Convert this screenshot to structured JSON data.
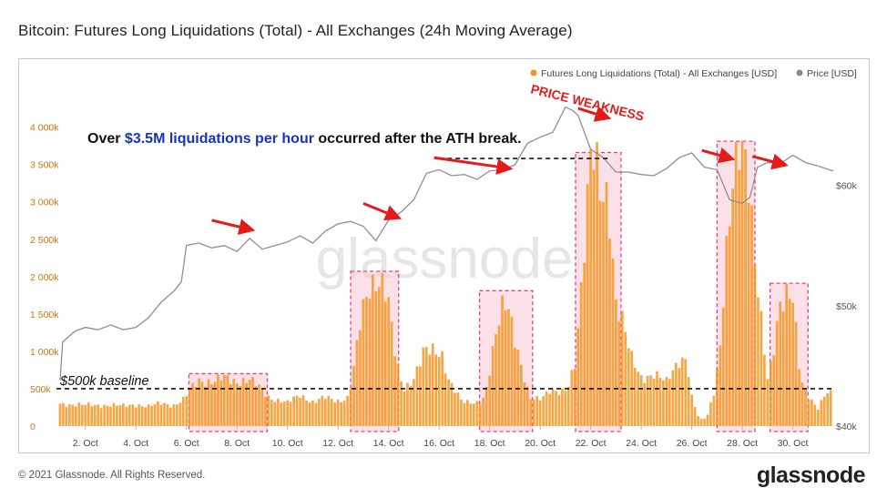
{
  "title": "Bitcoin: Futures Long Liquidations (Total) - All Exchanges (24h Moving Average)",
  "footer": "© 2021 Glassnode. All Rights Reserved.",
  "brand": "glassnode",
  "watermark": "glassnode",
  "colors": {
    "bar": "#f7931a",
    "price": "#999999",
    "highlight_fill": "#f7c6d6",
    "highlight_stroke": "#e8407a",
    "arrow": "#e51b1b",
    "annotation_blue": "#1633c9"
  },
  "chart_data": {
    "type": "bar",
    "x_tick_labels": [
      "2. Oct",
      "4. Oct",
      "6. Oct",
      "8. Oct",
      "10. Oct",
      "12. Oct",
      "14. Oct",
      "16. Oct",
      "18. Oct",
      "20. Oct",
      "22. Oct",
      "24. Oct",
      "26. Oct",
      "28. Oct",
      "30. Oct"
    ],
    "x_start_day": 1,
    "x_end_day": 31.6,
    "y_left_ticks": [
      "0",
      "500k",
      "1 000k",
      "1 500k",
      "2 000k",
      "2 500k",
      "3 000k",
      "3 500k",
      "4 000k"
    ],
    "y_left_range": [
      0,
      4300000
    ],
    "y_right_ticks": [
      "$40k",
      "$50k",
      "$60k"
    ],
    "y_right_range": [
      40000,
      66700
    ],
    "series": [
      {
        "name": "Futures Long Liquidations (Total) - All Exchanges [USD]",
        "type": "bar",
        "points": [
          [
            1,
            300000
          ],
          [
            1.5,
            290000
          ],
          [
            2,
            280000
          ],
          [
            2.5,
            280000
          ],
          [
            3,
            280000
          ],
          [
            3.5,
            270000
          ],
          [
            4,
            290000
          ],
          [
            4.5,
            260000
          ],
          [
            5,
            310000
          ],
          [
            5.5,
            280000
          ],
          [
            5.9,
            350000
          ],
          [
            6.1,
            470000
          ],
          [
            6.5,
            620000
          ],
          [
            7,
            590000
          ],
          [
            7.5,
            640000
          ],
          [
            8,
            600000
          ],
          [
            8.5,
            620000
          ],
          [
            9,
            480000
          ],
          [
            9.2,
            400000
          ],
          [
            9.5,
            360000
          ],
          [
            10,
            310000
          ],
          [
            10.5,
            420000
          ],
          [
            11,
            320000
          ],
          [
            11.5,
            380000
          ],
          [
            12,
            340000
          ],
          [
            12.4,
            380000
          ],
          [
            12.6,
            700000
          ],
          [
            12.9,
            1400000
          ],
          [
            13.2,
            1850000
          ],
          [
            13.5,
            2010000
          ],
          [
            13.8,
            1900000
          ],
          [
            14,
            1600000
          ],
          [
            14.3,
            850000
          ],
          [
            14.6,
            500000
          ],
          [
            15,
            650000
          ],
          [
            15.4,
            980000
          ],
          [
            15.8,
            1010000
          ],
          [
            16.1,
            1000000
          ],
          [
            16.4,
            600000
          ],
          [
            16.9,
            320000
          ],
          [
            17.3,
            320000
          ],
          [
            17.7,
            330000
          ],
          [
            17.9,
            520000
          ],
          [
            18.2,
            1100000
          ],
          [
            18.5,
            1600000
          ],
          [
            18.7,
            1750000
          ],
          [
            19,
            1200000
          ],
          [
            19.3,
            700000
          ],
          [
            19.6,
            350000
          ],
          [
            20,
            380000
          ],
          [
            20.4,
            500000
          ],
          [
            20.8,
            420000
          ],
          [
            21.1,
            500000
          ],
          [
            21.4,
            900000
          ],
          [
            21.6,
            1800000
          ],
          [
            21.8,
            2700000
          ],
          [
            22,
            3600000
          ],
          [
            22.2,
            3450000
          ],
          [
            22.4,
            3000000
          ],
          [
            22.7,
            3100000
          ],
          [
            23,
            1700000
          ],
          [
            23.2,
            1500000
          ],
          [
            23.6,
            900000
          ],
          [
            24,
            650000
          ],
          [
            24.5,
            700000
          ],
          [
            25,
            580000
          ],
          [
            25.5,
            900000
          ],
          [
            25.8,
            920000
          ],
          [
            26,
            380000
          ],
          [
            26.3,
            80000
          ],
          [
            26.6,
            120000
          ],
          [
            26.9,
            500000
          ],
          [
            27.1,
            1000000
          ],
          [
            27.4,
            2400000
          ],
          [
            27.7,
            3300000
          ],
          [
            27.9,
            3750000
          ],
          [
            28.2,
            3700000
          ],
          [
            28.5,
            2250000
          ],
          [
            28.8,
            1200000
          ],
          [
            29,
            600000
          ],
          [
            29.2,
            900000
          ],
          [
            29.5,
            1700000
          ],
          [
            29.8,
            1850000
          ],
          [
            30,
            1700000
          ],
          [
            30.3,
            600000
          ],
          [
            30.6,
            400000
          ],
          [
            31,
            250000
          ],
          [
            31.3,
            450000
          ],
          [
            31.6,
            420000
          ]
        ]
      },
      {
        "name": "Price [USD]",
        "type": "line",
        "points": [
          [
            1,
            43800
          ],
          [
            1.1,
            47000
          ],
          [
            1.6,
            47900
          ],
          [
            2,
            48200
          ],
          [
            2.5,
            48000
          ],
          [
            3,
            48400
          ],
          [
            3.5,
            48000
          ],
          [
            4,
            48200
          ],
          [
            4.5,
            49000
          ],
          [
            5,
            50300
          ],
          [
            5.5,
            51200
          ],
          [
            5.8,
            52000
          ],
          [
            6,
            55000
          ],
          [
            6.2,
            55100
          ],
          [
            6.5,
            55200
          ],
          [
            7,
            54800
          ],
          [
            7.5,
            55000
          ],
          [
            8,
            54500
          ],
          [
            8.5,
            55600
          ],
          [
            9,
            54700
          ],
          [
            9.5,
            55000
          ],
          [
            10,
            55300
          ],
          [
            10.5,
            55800
          ],
          [
            11,
            55200
          ],
          [
            11.5,
            56200
          ],
          [
            12,
            56800
          ],
          [
            12.5,
            57000
          ],
          [
            13,
            56600
          ],
          [
            13.5,
            55400
          ],
          [
            14,
            57100
          ],
          [
            14.5,
            57800
          ],
          [
            15,
            58800
          ],
          [
            15.5,
            61000
          ],
          [
            16,
            61300
          ],
          [
            16.5,
            60800
          ],
          [
            17,
            60900
          ],
          [
            17.5,
            60500
          ],
          [
            18,
            61200
          ],
          [
            18.5,
            61300
          ],
          [
            19,
            61700
          ],
          [
            19.5,
            63500
          ],
          [
            20,
            64000
          ],
          [
            20.5,
            64400
          ],
          [
            21,
            66500
          ],
          [
            21.3,
            66200
          ],
          [
            21.5,
            65800
          ],
          [
            22,
            63000
          ],
          [
            22.5,
            62300
          ],
          [
            23,
            61100
          ],
          [
            23.5,
            61100
          ],
          [
            24,
            60900
          ],
          [
            24.5,
            60800
          ],
          [
            25,
            61400
          ],
          [
            25.5,
            62300
          ],
          [
            26,
            62700
          ],
          [
            26.5,
            61500
          ],
          [
            27,
            61300
          ],
          [
            27.5,
            58800
          ],
          [
            28,
            58500
          ],
          [
            28.3,
            59000
          ],
          [
            28.6,
            61500
          ],
          [
            29,
            61900
          ],
          [
            29.5,
            61800
          ],
          [
            30,
            62500
          ],
          [
            30.5,
            61900
          ],
          [
            31,
            61600
          ],
          [
            31.6,
            61200
          ]
        ]
      }
    ],
    "highlight_ranges": [
      [
        6.1,
        9.2
      ],
      [
        12.5,
        14.4
      ],
      [
        17.6,
        19.7
      ],
      [
        21.4,
        23.2
      ],
      [
        27,
        28.5
      ],
      [
        29.1,
        30.6
      ]
    ],
    "baseline": {
      "value": 500000,
      "label": "$500k baseline"
    },
    "ath_line": {
      "value": 3580000,
      "x_from": 16
    },
    "annotations": {
      "headline_prefix": "Over",
      "headline_highlight": "$3.5M liquidations per hour",
      "headline_suffix": "occurred after the ATH break.",
      "price_weakness": "PRICE WEAKNESS"
    },
    "arrows": [
      {
        "x0": 7.0,
        "y0": 57100,
        "x1": 8.6,
        "y1": 56300
      },
      {
        "x0": 13.0,
        "y0": 58500,
        "x1": 14.4,
        "y1": 57300
      },
      {
        "x0": 15.8,
        "y0": 62300,
        "x1": 18.8,
        "y1": 61400
      },
      {
        "x0": 21.5,
        "y0": 66400,
        "x1": 22.7,
        "y1": 65600
      },
      {
        "x0": 26.4,
        "y0": 62900,
        "x1": 27.6,
        "y1": 62200
      },
      {
        "x0": 28.4,
        "y0": 62400,
        "x1": 29.7,
        "y1": 61700
      }
    ],
    "legend": {
      "position": "top-right",
      "items": [
        {
          "label": "Futures Long Liquidations (Total) - All Exchanges [USD]",
          "color": "#f7931a"
        },
        {
          "label": "Price [USD]",
          "color": "#888888"
        }
      ]
    }
  }
}
